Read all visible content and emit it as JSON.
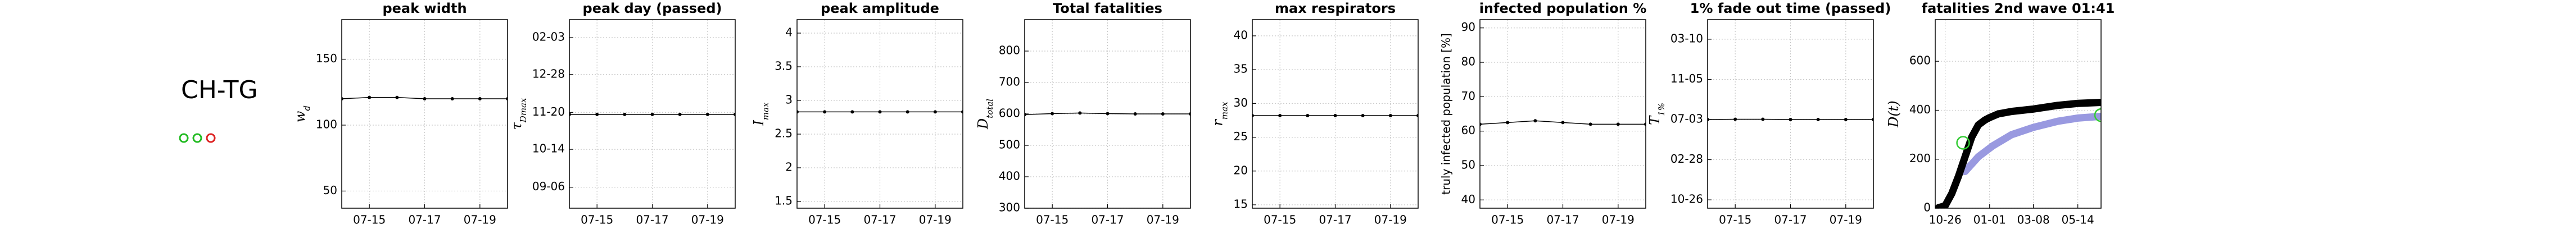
{
  "region": {
    "label": "CH-TG",
    "indicators": [
      {
        "color": "#22bb22"
      },
      {
        "color": "#22bb22"
      },
      {
        "color": "#dd2222"
      }
    ]
  },
  "chart_data": [
    {
      "type": "line",
      "title": "peak width",
      "ylabel": {
        "text": "w",
        "sub": "d"
      },
      "categories": [
        null,
        "07-15",
        null,
        "07-17",
        null,
        "07-19",
        null
      ],
      "values": [
        120,
        121,
        121,
        120,
        120,
        120,
        120
      ],
      "color": "#000000",
      "ylim": [
        37,
        180
      ],
      "yticks": [
        50,
        100,
        150
      ],
      "grid": true
    },
    {
      "type": "line",
      "title": "peak day (passed)",
      "ylabel": {
        "text": "τ",
        "sub": "Dmax"
      },
      "categories": [
        null,
        "07-15",
        null,
        "07-17",
        null,
        "07-19",
        null
      ],
      "values": [
        323,
        323,
        323,
        323,
        323,
        323,
        323
      ],
      "color": "#000000",
      "ylim": [
        229,
        418
      ],
      "yticks": [
        {
          "value": 250,
          "label": "09-06"
        },
        {
          "value": 288,
          "label": "10-14"
        },
        {
          "value": 325,
          "label": "11-20"
        },
        {
          "value": 363,
          "label": "12-28"
        },
        {
          "value": 400,
          "label": "02-03"
        }
      ],
      "grid": true
    },
    {
      "type": "line",
      "title": "peak amplitude",
      "ylabel": {
        "text": "I",
        "sub": "max"
      },
      "categories": [
        null,
        "07-15",
        null,
        "07-17",
        null,
        "07-19",
        null
      ],
      "values": [
        2.83,
        2.83,
        2.83,
        2.83,
        2.83,
        2.83,
        2.83
      ],
      "color": "#000000",
      "ylim": [
        1.4,
        4.2
      ],
      "yticks": [
        1.5,
        2,
        2.5,
        3,
        3.5,
        4
      ],
      "grid": true
    },
    {
      "type": "line",
      "title": "Total fatalities",
      "ylabel": {
        "text": "D",
        "sub": "total"
      },
      "categories": [
        null,
        "07-15",
        null,
        "07-17",
        null,
        "07-19",
        null
      ],
      "values": [
        598,
        601,
        603,
        601,
        600,
        600,
        600
      ],
      "color": "#000000",
      "ylim": [
        300,
        900
      ],
      "yticks": [
        300,
        400,
        500,
        600,
        700,
        800
      ],
      "grid": true
    },
    {
      "type": "line",
      "title": "max respirators",
      "ylabel": {
        "text": "r",
        "sub": "max"
      },
      "categories": [
        null,
        "07-15",
        null,
        "07-17",
        null,
        "07-19",
        null
      ],
      "values": [
        28.2,
        28.2,
        28.2,
        28.2,
        28.2,
        28.2,
        28.2
      ],
      "color": "#000000",
      "ylim": [
        14.5,
        42.4
      ],
      "yticks": [
        15,
        20,
        25,
        30,
        35,
        40
      ],
      "grid": true
    },
    {
      "type": "line",
      "title": "infected population %",
      "ylabel": {
        "text": "truly infected population [%]"
      },
      "categories": [
        null,
        "07-15",
        null,
        "07-17",
        null,
        "07-19",
        null
      ],
      "values": [
        62,
        62.5,
        63,
        62.5,
        62,
        62,
        62
      ],
      "color": "#000000",
      "ylim": [
        37.6,
        92.4
      ],
      "yticks": [
        40,
        50,
        60,
        70,
        80,
        90
      ],
      "grid": true
    },
    {
      "type": "line",
      "title": "1% fade out time (passed)",
      "ylabel": {
        "text": "T",
        "sub": "1%"
      },
      "categories": [
        null,
        "07-15",
        null,
        "07-17",
        null,
        "07-19",
        null
      ],
      "values": [
        550,
        551,
        551,
        550,
        550,
        550,
        550
      ],
      "color": "#000000",
      "ylim": [
        274,
        861
      ],
      "yticks": [
        {
          "value": 300,
          "label": "10-26"
        },
        {
          "value": 425,
          "label": "02-28"
        },
        {
          "value": 550,
          "label": "07-03"
        },
        {
          "value": 675,
          "label": "11-05"
        },
        {
          "value": 800,
          "label": "03-10"
        }
      ],
      "grid": true
    },
    {
      "type": "line",
      "title": "fatalities 2nd wave 01:41",
      "ylabel": {
        "text": "D(t)"
      },
      "xlim": [
        285,
        535
      ],
      "xticks": [
        {
          "value": 300,
          "label": "10-26"
        },
        {
          "value": 367,
          "label": "01-01"
        },
        {
          "value": 433,
          "label": "03-08"
        },
        {
          "value": 500,
          "label": "05-14"
        }
      ],
      "ylim": [
        0,
        770
      ],
      "yticks": [
        0,
        200,
        400,
        600
      ],
      "grid": true,
      "series": [
        {
          "type": "line",
          "color": "#9999e0",
          "x": [
            330,
            350,
            372,
            400,
            433,
            470,
            500,
            535
          ],
          "values": [
            150,
            210,
            255,
            300,
            330,
            355,
            368,
            375
          ]
        },
        {
          "type": "line",
          "color": "#000000",
          "x": [
            290,
            300,
            310,
            320,
            330,
            340,
            350,
            360,
            367,
            380,
            400,
            433,
            470,
            500,
            535
          ],
          "values": [
            2,
            10,
            60,
            130,
            210,
            290,
            340,
            360,
            370,
            385,
            395,
            405,
            420,
            428,
            432
          ]
        },
        {
          "type": "scatter",
          "color": "#33cc33",
          "x": [
            327,
            535
          ],
          "values": [
            267,
            380
          ]
        }
      ]
    }
  ]
}
